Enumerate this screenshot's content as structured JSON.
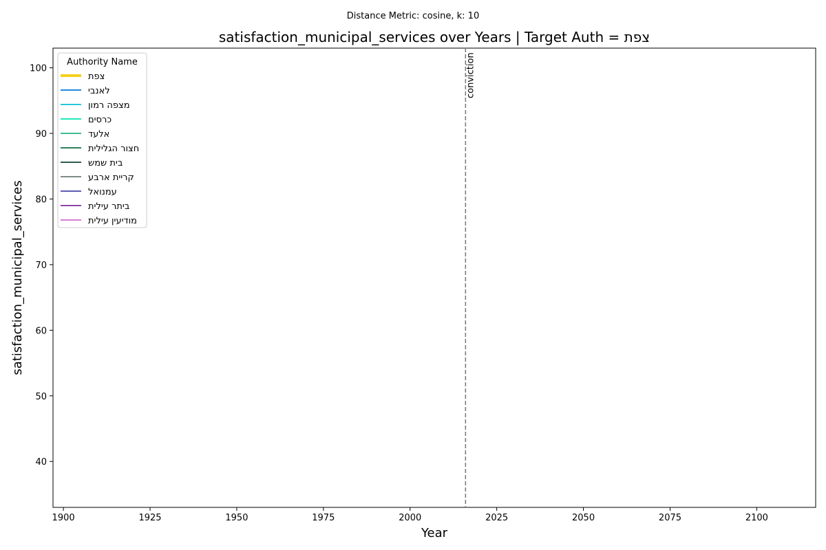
{
  "suptitle": "Distance Metric: cosine, k: 10",
  "chart_data": {
    "type": "line",
    "title": "satisfaction_municipal_services over Years | Target Auth = צפת",
    "xlabel": "Year",
    "ylabel": "satisfaction_municipal_services",
    "xlim": [
      1897,
      2117
    ],
    "ylim": [
      33,
      103
    ],
    "xticks": [
      1900,
      1925,
      1950,
      1975,
      2000,
      2025,
      2050,
      2075,
      2100
    ],
    "yticks": [
      40,
      50,
      60,
      70,
      80,
      90,
      100
    ],
    "grid": false,
    "legend": {
      "title": "Authority Name",
      "placement": "top-left"
    },
    "series": [
      {
        "name": "צפת",
        "color": "#f5d01e",
        "highlight": true,
        "x": [],
        "y": []
      },
      {
        "name": "לאנבי",
        "color": "#1e88e5",
        "x": [],
        "y": []
      },
      {
        "name": "מצפה רמון",
        "color": "#26c6da",
        "x": [],
        "y": []
      },
      {
        "name": "כרסים",
        "color": "#1de9b6",
        "x": [],
        "y": []
      },
      {
        "name": "אלעד",
        "color": "#3dbf8f",
        "x": [],
        "y": []
      },
      {
        "name": "חצור הגלילית",
        "color": "#2e7d5b",
        "x": [],
        "y": []
      },
      {
        "name": "בית שמש",
        "color": "#2f5b4f",
        "x": [],
        "y": []
      },
      {
        "name": "קריית ארבע",
        "color": "#7e8c86",
        "x": [],
        "y": []
      },
      {
        "name": "עמנואל",
        "color": "#5e5ab5",
        "x": [],
        "y": []
      },
      {
        "name": "ביתר עילית",
        "color": "#8e44ad",
        "x": [],
        "y": []
      },
      {
        "name": "מודיעין עילית",
        "color": "#d67fd6",
        "x": [],
        "y": []
      }
    ],
    "annotations": [
      {
        "type": "vline",
        "x": 2016,
        "label": "conviction",
        "style": "dashed",
        "color": "#777777"
      }
    ]
  }
}
